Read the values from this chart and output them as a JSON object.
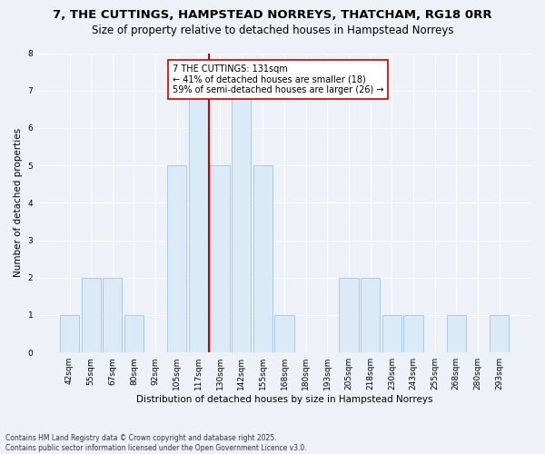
{
  "title1": "7, THE CUTTINGS, HAMPSTEAD NORREYS, THATCHAM, RG18 0RR",
  "title2": "Size of property relative to detached houses in Hampstead Norreys",
  "xlabel": "Distribution of detached houses by size in Hampstead Norreys",
  "ylabel": "Number of detached properties",
  "footnote": "Contains HM Land Registry data © Crown copyright and database right 2025.\nContains public sector information licensed under the Open Government Licence v3.0.",
  "bin_labels": [
    "42sqm",
    "55sqm",
    "67sqm",
    "80sqm",
    "92sqm",
    "105sqm",
    "117sqm",
    "130sqm",
    "142sqm",
    "155sqm",
    "168sqm",
    "180sqm",
    "193sqm",
    "205sqm",
    "218sqm",
    "230sqm",
    "243sqm",
    "255sqm",
    "268sqm",
    "280sqm",
    "293sqm"
  ],
  "bar_heights": [
    1,
    2,
    2,
    1,
    0,
    5,
    7,
    5,
    7,
    5,
    1,
    0,
    0,
    2,
    2,
    1,
    1,
    0,
    1,
    0,
    1
  ],
  "bar_color": "#daeaf7",
  "bar_edge_color": "#aac8e8",
  "highlight_bin_index": 7,
  "highlight_color": "#cc0000",
  "annotation_text": "7 THE CUTTINGS: 131sqm\n← 41% of detached houses are smaller (18)\n59% of semi-detached houses are larger (26) →",
  "ylim": [
    0,
    8
  ],
  "yticks": [
    0,
    1,
    2,
    3,
    4,
    5,
    6,
    7,
    8
  ],
  "bg_color": "#eef2f8",
  "plot_bg_color": "#eef2f8",
  "grid_color": "#ffffff",
  "annotation_box_color": "#ffffff",
  "title1_fontsize": 9.5,
  "title2_fontsize": 8.5,
  "xlabel_fontsize": 7.5,
  "ylabel_fontsize": 7.5,
  "tick_fontsize": 6.5,
  "annotation_fontsize": 7,
  "footnote_fontsize": 5.5
}
